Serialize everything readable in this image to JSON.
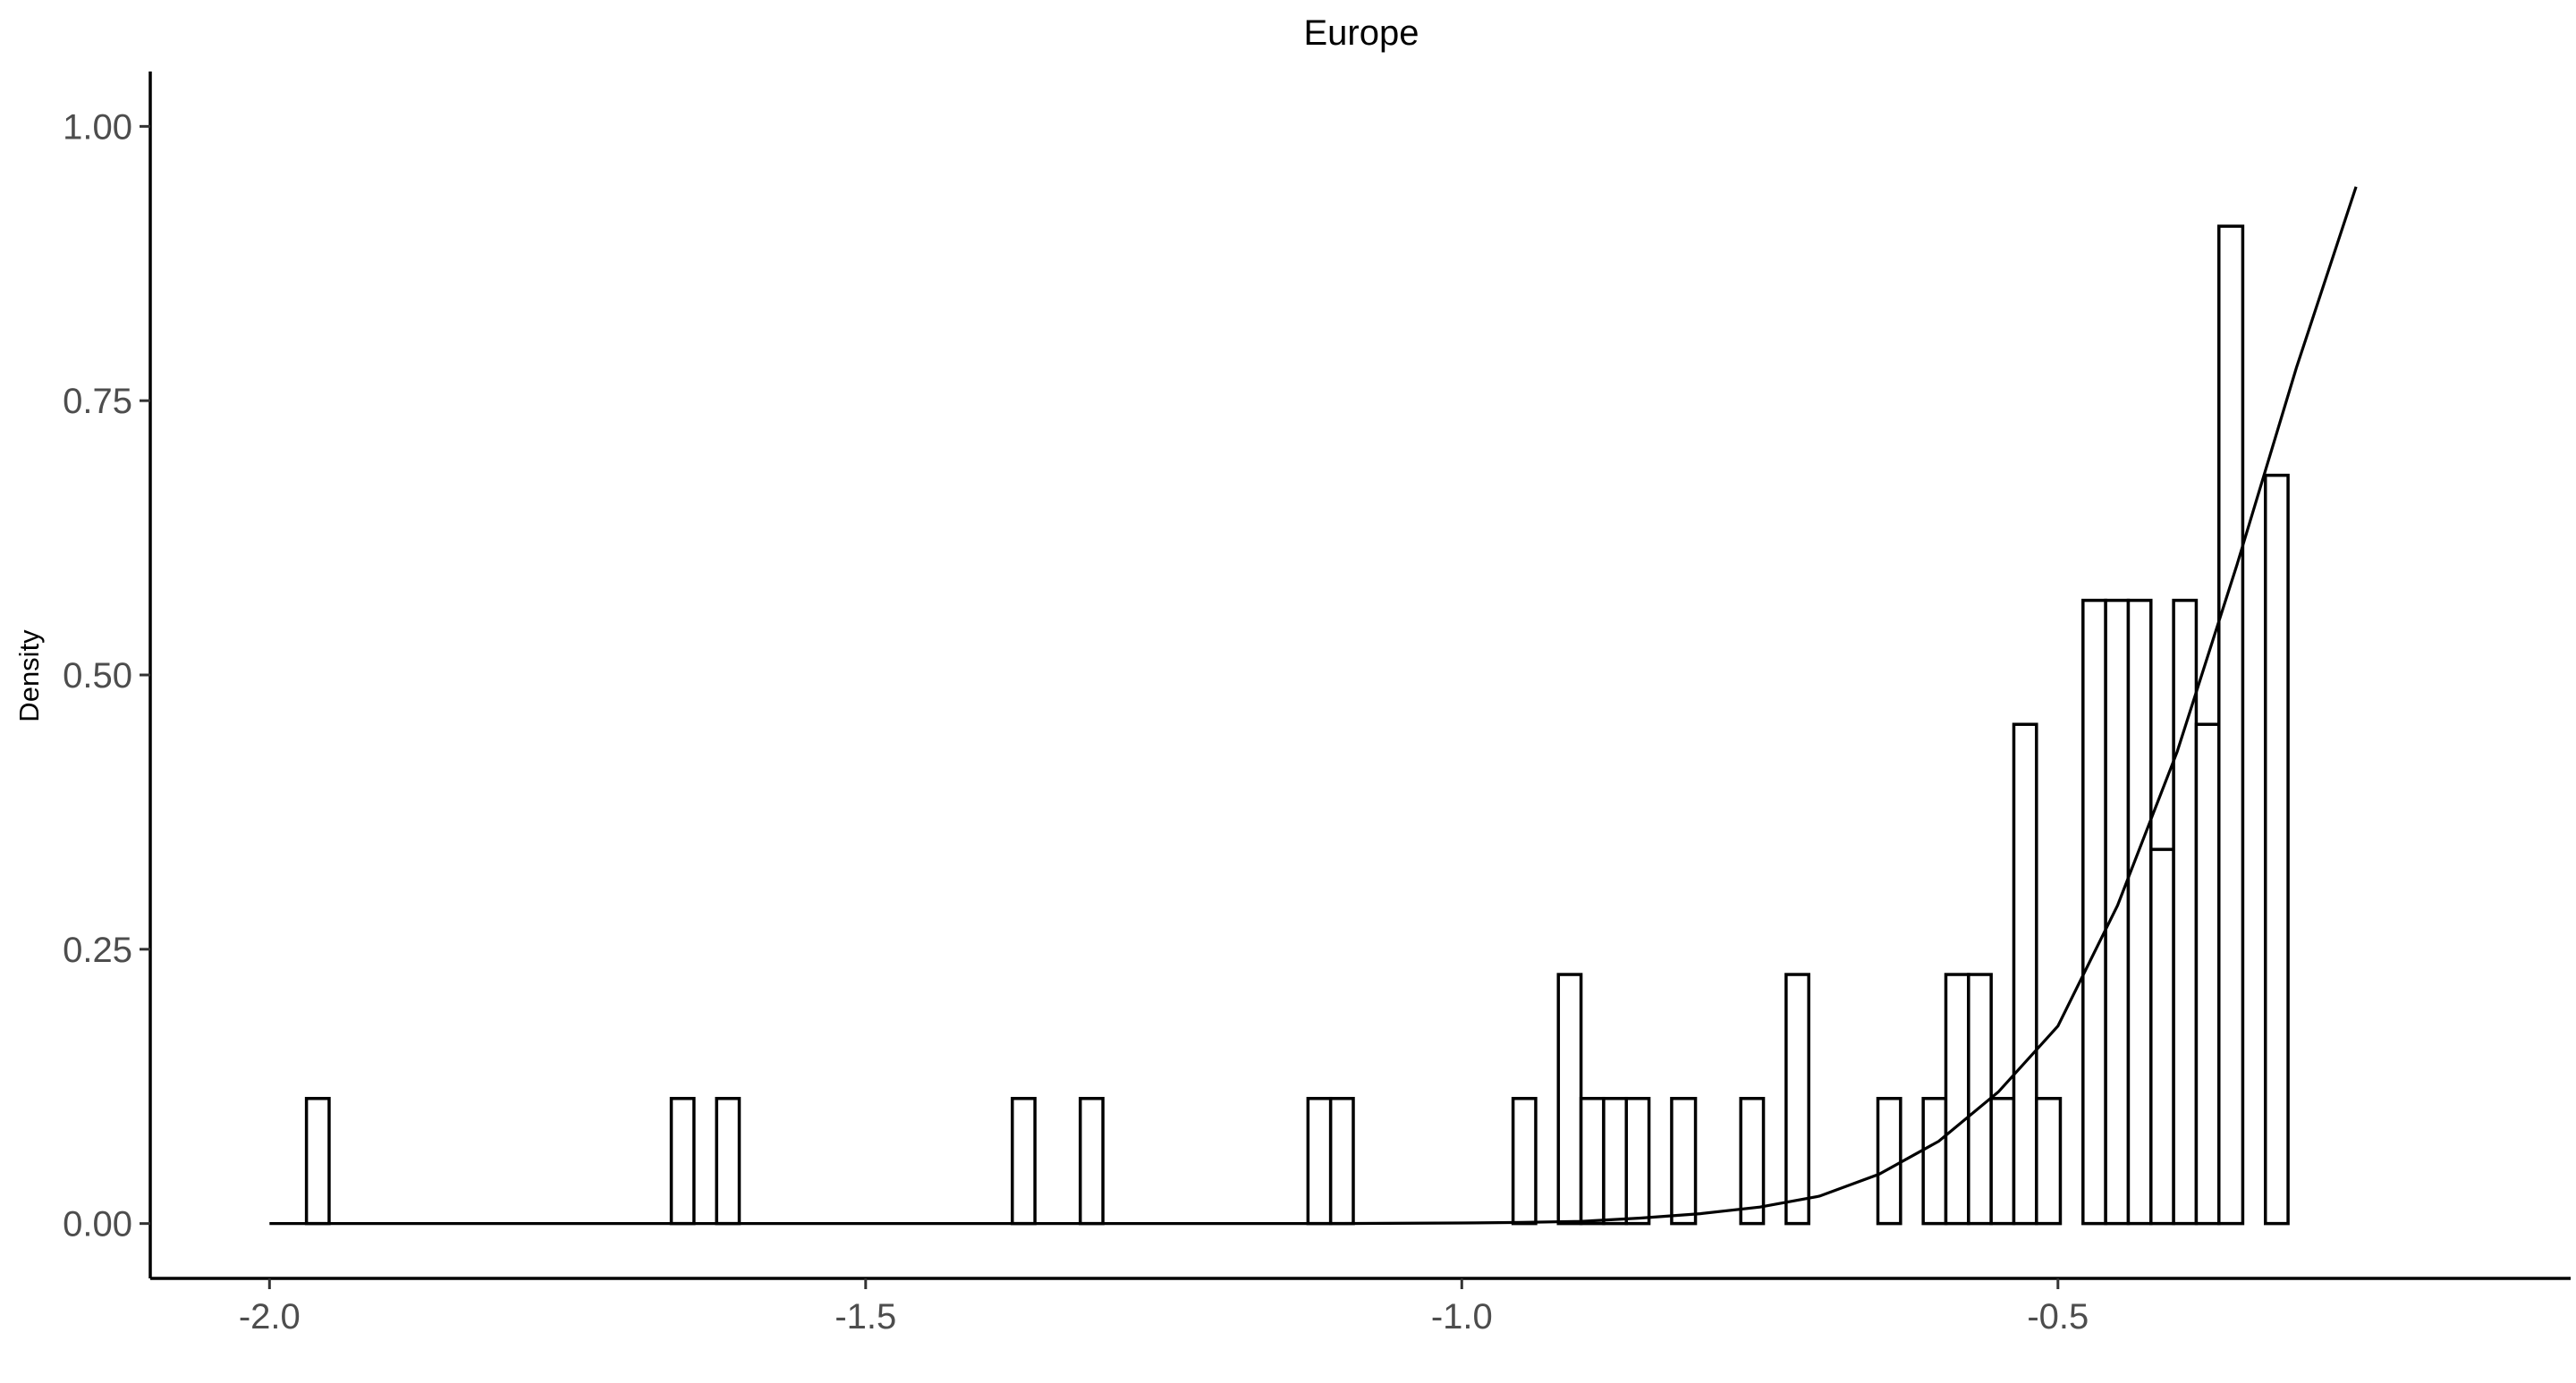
{
  "chart_data": {
    "type": "histogram",
    "title": "Europe",
    "xlabel": "",
    "ylabel": "Density",
    "xlim": [
      -2.1,
      -0.07
    ],
    "ylim": [
      -0.05,
      1.05
    ],
    "x_ticks": [
      -2.0,
      -1.5,
      -1.0,
      -0.5
    ],
    "x_tick_labels": [
      "-2.0",
      "-1.5",
      "-1.0",
      "-0.5"
    ],
    "y_ticks": [
      0.0,
      0.25,
      0.5,
      0.75,
      1.0
    ],
    "y_tick_labels": [
      "0.00",
      "0.25",
      "0.50",
      "0.75",
      "1.00"
    ],
    "grid": false,
    "legend": "none",
    "bars": [
      {
        "x0": -1.969,
        "x1": -1.95,
        "density": 0.114
      },
      {
        "x0": -1.663,
        "x1": -1.644,
        "density": 0.114
      },
      {
        "x0": -1.625,
        "x1": -1.606,
        "density": 0.114
      },
      {
        "x0": -1.377,
        "x1": -1.358,
        "density": 0.114
      },
      {
        "x0": -1.32,
        "x1": -1.301,
        "density": 0.114
      },
      {
        "x0": -1.129,
        "x1": -1.11,
        "density": 0.114
      },
      {
        "x0": -1.11,
        "x1": -1.091,
        "density": 0.114
      },
      {
        "x0": -0.957,
        "x1": -0.938,
        "density": 0.114
      },
      {
        "x0": -0.919,
        "x1": -0.9,
        "density": 0.227
      },
      {
        "x0": -0.9,
        "x1": -0.881,
        "density": 0.114
      },
      {
        "x0": -0.881,
        "x1": -0.862,
        "density": 0.114
      },
      {
        "x0": -0.862,
        "x1": -0.843,
        "density": 0.114
      },
      {
        "x0": -0.824,
        "x1": -0.804,
        "density": 0.114
      },
      {
        "x0": -0.766,
        "x1": -0.747,
        "density": 0.114
      },
      {
        "x0": -0.728,
        "x1": -0.709,
        "density": 0.227
      },
      {
        "x0": -0.651,
        "x1": -0.632,
        "density": 0.114
      },
      {
        "x0": -0.613,
        "x1": -0.594,
        "density": 0.114
      },
      {
        "x0": -0.594,
        "x1": -0.575,
        "density": 0.227
      },
      {
        "x0": -0.575,
        "x1": -0.556,
        "density": 0.227
      },
      {
        "x0": -0.556,
        "x1": -0.537,
        "density": 0.114
      },
      {
        "x0": -0.537,
        "x1": -0.518,
        "density": 0.455
      },
      {
        "x0": -0.518,
        "x1": -0.498,
        "density": 0.114
      },
      {
        "x0": -0.479,
        "x1": -0.46,
        "density": 0.568
      },
      {
        "x0": -0.46,
        "x1": -0.441,
        "density": 0.568
      },
      {
        "x0": -0.441,
        "x1": -0.422,
        "density": 0.568
      },
      {
        "x0": -0.422,
        "x1": -0.403,
        "density": 0.341
      },
      {
        "x0": -0.403,
        "x1": -0.384,
        "density": 0.568
      },
      {
        "x0": -0.384,
        "x1": -0.365,
        "density": 0.455
      },
      {
        "x0": -0.365,
        "x1": -0.345,
        "density": 0.909
      },
      {
        "x0": -0.326,
        "x1": -0.307,
        "density": 0.682
      }
    ],
    "series": [
      {
        "type": "line",
        "x": [
          -2.0,
          -1.1,
          -1.0,
          -0.95,
          -0.9,
          -0.85,
          -0.8,
          -0.75,
          -0.7,
          -0.65,
          -0.6,
          -0.55,
          -0.5,
          -0.45,
          -0.4,
          -0.35,
          -0.3,
          -0.25
        ],
        "values": [
          0.0,
          0.0,
          0.0005,
          0.001,
          0.002,
          0.005,
          0.009,
          0.015,
          0.025,
          0.045,
          0.075,
          0.12,
          0.18,
          0.29,
          0.43,
          0.6,
          0.78,
          0.945
        ]
      }
    ]
  }
}
